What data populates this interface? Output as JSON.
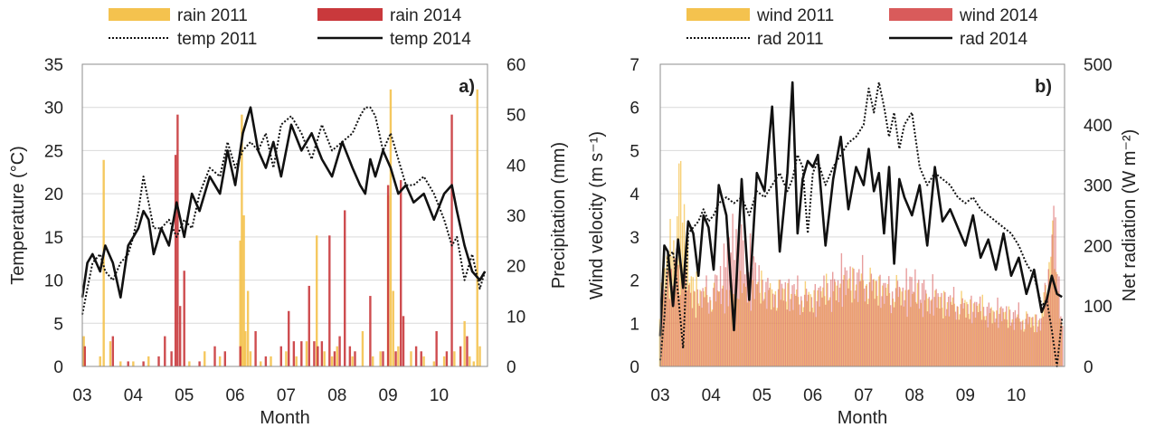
{
  "chart_data": [
    {
      "type": "line",
      "panel_label": "a)",
      "xlabel": "Month",
      "ylabel_left": "Temperature (°C)",
      "ylabel_right": "Precipitation (mm)",
      "x_ticks": [
        "03",
        "04",
        "05",
        "06",
        "07",
        "08",
        "09",
        "10"
      ],
      "xlim": [
        3.0,
        10.95
      ],
      "ylim_left": [
        0,
        35
      ],
      "yticks_left": [
        0,
        5,
        10,
        15,
        20,
        25,
        30,
        35
      ],
      "ylim_right": [
        0,
        60
      ],
      "yticks_right": [
        0,
        10,
        20,
        30,
        40,
        50,
        60
      ],
      "grid": "horizontal",
      "legend_position": "top",
      "colors": {
        "rain_2011": "#f4c24e",
        "rain_2014": "#c9393c",
        "temp_2011": "#333333",
        "temp_2014": "#111111"
      },
      "series": [
        {
          "name": "temp 2011",
          "axis": "left",
          "kind": "line",
          "style": "dotted",
          "x": [
            3.0,
            3.1,
            3.2,
            3.35,
            3.45,
            3.6,
            3.75,
            3.9,
            4.0,
            4.1,
            4.2,
            4.3,
            4.4,
            4.55,
            4.7,
            4.85,
            5.0,
            5.15,
            5.3,
            5.5,
            5.7,
            5.85,
            6.0,
            6.15,
            6.3,
            6.45,
            6.6,
            6.75,
            6.9,
            7.1,
            7.3,
            7.5,
            7.7,
            7.9,
            8.1,
            8.3,
            8.45,
            8.55,
            8.65,
            8.75,
            8.9,
            9.05,
            9.2,
            9.35,
            9.5,
            9.7,
            9.9,
            10.1,
            10.25,
            10.35,
            10.5,
            10.65,
            10.8,
            10.9
          ],
          "y": [
            6,
            9,
            12,
            13,
            11,
            10,
            12,
            13,
            15,
            18,
            22,
            19,
            16,
            16,
            17,
            15,
            17,
            16,
            20,
            23,
            22,
            26,
            23,
            25,
            26,
            25,
            27,
            23,
            28,
            29,
            27,
            24,
            28,
            25,
            26,
            27,
            29,
            30,
            30,
            29,
            25,
            27,
            24,
            21,
            21,
            22,
            20,
            17,
            14,
            15,
            10,
            13,
            9,
            11
          ]
        },
        {
          "name": "temp 2014",
          "axis": "left",
          "kind": "line",
          "style": "solid",
          "x": [
            3.0,
            3.1,
            3.2,
            3.35,
            3.45,
            3.6,
            3.75,
            3.9,
            4.0,
            4.1,
            4.2,
            4.3,
            4.4,
            4.55,
            4.7,
            4.85,
            5.0,
            5.15,
            5.3,
            5.5,
            5.7,
            5.85,
            6.0,
            6.15,
            6.3,
            6.45,
            6.6,
            6.75,
            6.9,
            7.1,
            7.3,
            7.5,
            7.7,
            7.9,
            8.1,
            8.3,
            8.45,
            8.55,
            8.65,
            8.75,
            8.9,
            9.05,
            9.2,
            9.35,
            9.5,
            9.7,
            9.9,
            10.1,
            10.25,
            10.35,
            10.5,
            10.65,
            10.8,
            10.9
          ],
          "y": [
            8,
            12,
            13,
            11,
            14,
            12,
            8,
            14,
            15,
            16,
            18,
            17,
            13,
            16,
            14,
            19,
            15,
            20,
            18,
            22,
            20,
            25,
            21,
            27,
            30,
            25,
            23,
            26,
            22,
            28,
            25,
            27,
            24,
            22,
            26,
            23,
            21,
            20,
            24,
            22,
            25,
            23,
            20,
            21,
            19,
            20,
            17,
            20,
            21,
            18,
            14,
            11,
            10,
            11
          ]
        },
        {
          "name": "rain 2011",
          "axis": "right",
          "kind": "bars",
          "x": [
            3.03,
            3.35,
            3.42,
            3.55,
            3.75,
            4.0,
            4.3,
            5.1,
            5.4,
            5.7,
            6.1,
            6.13,
            6.17,
            6.2,
            6.25,
            6.3,
            6.5,
            6.7,
            7.0,
            7.2,
            7.4,
            7.6,
            7.75,
            7.9,
            8.0,
            8.3,
            8.5,
            8.7,
            8.85,
            9.0,
            9.05,
            9.1,
            9.2,
            9.45,
            9.7,
            9.9,
            10.1,
            10.3,
            10.5,
            10.6,
            10.68,
            10.75,
            10.8
          ],
          "y": [
            6,
            2,
            41,
            5,
            1,
            1,
            2,
            1,
            3,
            2,
            25,
            50,
            30,
            7,
            15,
            3,
            1,
            2,
            3,
            2,
            5,
            26,
            3,
            2,
            4,
            2,
            7,
            2,
            3,
            34,
            55,
            15,
            4,
            3,
            2,
            1,
            2,
            3,
            9,
            2,
            1,
            55,
            4
          ]
        },
        {
          "name": "rain 2014",
          "axis": "right",
          "kind": "bars",
          "x": [
            3.05,
            3.6,
            3.9,
            4.2,
            4.5,
            4.62,
            4.75,
            4.83,
            4.87,
            4.92,
            5.0,
            5.3,
            5.6,
            5.8,
            6.1,
            6.4,
            6.6,
            6.9,
            7.05,
            7.15,
            7.3,
            7.45,
            7.55,
            7.62,
            7.7,
            7.85,
            7.95,
            8.05,
            8.15,
            8.25,
            8.35,
            8.65,
            8.9,
            9.0,
            9.15,
            9.25,
            9.3,
            9.55,
            9.65,
            9.95,
            10.15,
            10.25,
            10.42,
            10.55
          ],
          "y": [
            4,
            6,
            1,
            1,
            2,
            6,
            3,
            42,
            50,
            12,
            19,
            1,
            4,
            3,
            4,
            7,
            2,
            4,
            11,
            5,
            5,
            16,
            5,
            4,
            5,
            26,
            3,
            6,
            31,
            4,
            3,
            14,
            3,
            36,
            3,
            37,
            10,
            4,
            3,
            7,
            3,
            50,
            4,
            6
          ]
        }
      ]
    },
    {
      "type": "line",
      "panel_label": "b)",
      "xlabel": "Month",
      "ylabel_left": "Wind velocity (m s⁻¹)",
      "ylabel_right": "Net radiation (W m⁻²)",
      "x_ticks": [
        "03",
        "04",
        "05",
        "06",
        "07",
        "08",
        "09",
        "10"
      ],
      "xlim": [
        3.0,
        10.95
      ],
      "ylim_left": [
        0,
        7
      ],
      "yticks_left": [
        0,
        1,
        2,
        3,
        4,
        5,
        6,
        7
      ],
      "ylim_right": [
        0,
        500
      ],
      "yticks_right": [
        0,
        100,
        200,
        300,
        400,
        500
      ],
      "grid": "horizontal",
      "legend_position": "top",
      "colors": {
        "wind_2011": "#f4c24e",
        "wind_2014": "#d95b5b",
        "rad_2011": "#333333",
        "rad_2014": "#111111"
      },
      "series": [
        {
          "name": "rad 2011",
          "axis": "right",
          "kind": "line",
          "style": "dotted",
          "x": [
            3.0,
            3.08,
            3.15,
            3.25,
            3.35,
            3.45,
            3.55,
            3.65,
            3.75,
            3.85,
            3.95,
            4.05,
            4.15,
            4.3,
            4.45,
            4.6,
            4.75,
            4.9,
            5.05,
            5.2,
            5.35,
            5.5,
            5.6,
            5.7,
            5.8,
            5.9,
            6.0,
            6.1,
            6.25,
            6.4,
            6.55,
            6.7,
            6.85,
            7.0,
            7.1,
            7.2,
            7.3,
            7.4,
            7.5,
            7.6,
            7.7,
            7.8,
            7.95,
            8.1,
            8.25,
            8.4,
            8.55,
            8.7,
            8.85,
            9.0,
            9.15,
            9.3,
            9.45,
            9.6,
            9.75,
            9.9,
            10.05,
            10.2,
            10.35,
            10.5,
            10.6,
            10.7,
            10.8,
            10.9
          ],
          "y": [
            10,
            80,
            180,
            190,
            120,
            30,
            220,
            230,
            240,
            260,
            240,
            250,
            270,
            280,
            270,
            280,
            250,
            290,
            280,
            300,
            320,
            290,
            310,
            350,
            330,
            220,
            320,
            340,
            300,
            330,
            350,
            370,
            380,
            400,
            460,
            420,
            470,
            430,
            380,
            420,
            360,
            400,
            420,
            330,
            300,
            320,
            310,
            300,
            280,
            270,
            280,
            260,
            250,
            240,
            230,
            220,
            200,
            170,
            150,
            100,
            110,
            60,
            0,
            80
          ]
        },
        {
          "name": "rad 2014",
          "axis": "right",
          "kind": "line",
          "style": "solid",
          "x": [
            3.0,
            3.08,
            3.15,
            3.25,
            3.35,
            3.45,
            3.55,
            3.65,
            3.75,
            3.85,
            3.95,
            4.05,
            4.15,
            4.3,
            4.45,
            4.6,
            4.75,
            4.9,
            5.05,
            5.2,
            5.35,
            5.5,
            5.6,
            5.7,
            5.8,
            5.9,
            6.0,
            6.1,
            6.25,
            6.4,
            6.55,
            6.7,
            6.85,
            7.0,
            7.1,
            7.2,
            7.3,
            7.4,
            7.5,
            7.6,
            7.7,
            7.8,
            7.95,
            8.1,
            8.25,
            8.4,
            8.55,
            8.7,
            8.85,
            9.0,
            9.15,
            9.3,
            9.45,
            9.6,
            9.75,
            9.9,
            10.05,
            10.2,
            10.35,
            10.5,
            10.6,
            10.7,
            10.8,
            10.9
          ],
          "y": [
            50,
            200,
            190,
            100,
            210,
            130,
            240,
            220,
            150,
            250,
            230,
            160,
            300,
            250,
            60,
            310,
            110,
            320,
            290,
            430,
            190,
            320,
            470,
            220,
            310,
            340,
            330,
            350,
            200,
            310,
            380,
            260,
            330,
            300,
            360,
            290,
            320,
            220,
            330,
            170,
            310,
            280,
            250,
            300,
            200,
            330,
            240,
            260,
            230,
            200,
            250,
            180,
            210,
            160,
            220,
            150,
            180,
            120,
            160,
            90,
            110,
            150,
            120,
            115
          ]
        },
        {
          "name": "wind 2011",
          "axis": "left",
          "kind": "bars",
          "x_range": [
            3.0,
            10.9
          ],
          "profile_x": [
            3.0,
            3.35,
            3.4,
            3.6,
            4.0,
            4.5,
            5.0,
            5.5,
            6.0,
            6.5,
            7.0,
            7.5,
            8.0,
            8.5,
            9.0,
            9.5,
            10.0,
            10.5,
            10.7,
            10.9
          ],
          "profile_y": [
            2.0,
            4.5,
            6.1,
            2.5,
            2.0,
            2.2,
            2.3,
            2.1,
            2.0,
            2.3,
            2.5,
            2.2,
            2.0,
            1.9,
            1.8,
            1.6,
            1.4,
            1.3,
            3.8,
            1.2
          ]
        },
        {
          "name": "wind 2014",
          "axis": "left",
          "kind": "bars",
          "x_range": [
            3.0,
            10.9
          ],
          "profile_x": [
            3.0,
            3.3,
            3.6,
            4.0,
            4.5,
            5.0,
            5.5,
            6.0,
            6.5,
            7.0,
            7.5,
            8.0,
            8.5,
            9.0,
            9.5,
            10.0,
            10.5,
            10.75,
            10.9
          ],
          "profile_y": [
            1.8,
            3.2,
            2.0,
            2.2,
            4.1,
            2.4,
            2.3,
            2.0,
            2.7,
            2.6,
            2.2,
            2.5,
            2.0,
            1.8,
            1.7,
            1.5,
            1.3,
            4.6,
            1.0
          ]
        }
      ]
    }
  ]
}
